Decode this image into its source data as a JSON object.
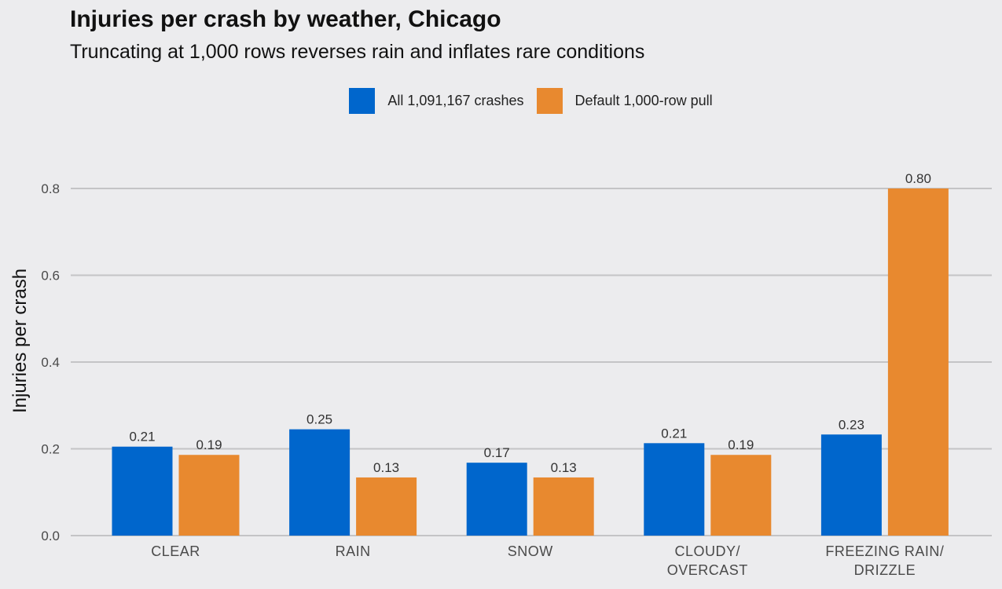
{
  "chart_data": {
    "type": "bar",
    "title": "Injuries per crash by weather, Chicago",
    "subtitle": "Truncating at 1,000 rows reverses rain and inflates rare conditions",
    "xlabel": "",
    "ylabel": "Injuries per crash",
    "categories": [
      [
        "CLEAR"
      ],
      [
        "RAIN"
      ],
      [
        "SNOW"
      ],
      [
        "CLOUDY/",
        "OVERCAST"
      ],
      [
        "FREEZING RAIN/",
        "DRIZZLE"
      ]
    ],
    "series": [
      {
        "name": "All 1,091,167 crashes",
        "color": "#0066cc",
        "values": [
          0.205,
          0.245,
          0.168,
          0.213,
          0.233
        ],
        "labels": [
          "0.21",
          "0.25",
          "0.17",
          "0.21",
          "0.23"
        ]
      },
      {
        "name": "Default 1,000-row pull",
        "color": "#e8892f",
        "values": [
          0.186,
          0.134,
          0.134,
          0.186,
          0.8
        ],
        "labels": [
          "0.19",
          "0.13",
          "0.13",
          "0.19",
          "0.80"
        ]
      }
    ],
    "ylim": [
      0,
      0.8
    ],
    "yticks": [
      0,
      0.2,
      0.4,
      0.6,
      0.8
    ],
    "ytick_labels": [
      "0.0",
      "0.2",
      "0.4",
      "0.6",
      "0.8"
    ],
    "grid": true,
    "legend_position": "top"
  }
}
